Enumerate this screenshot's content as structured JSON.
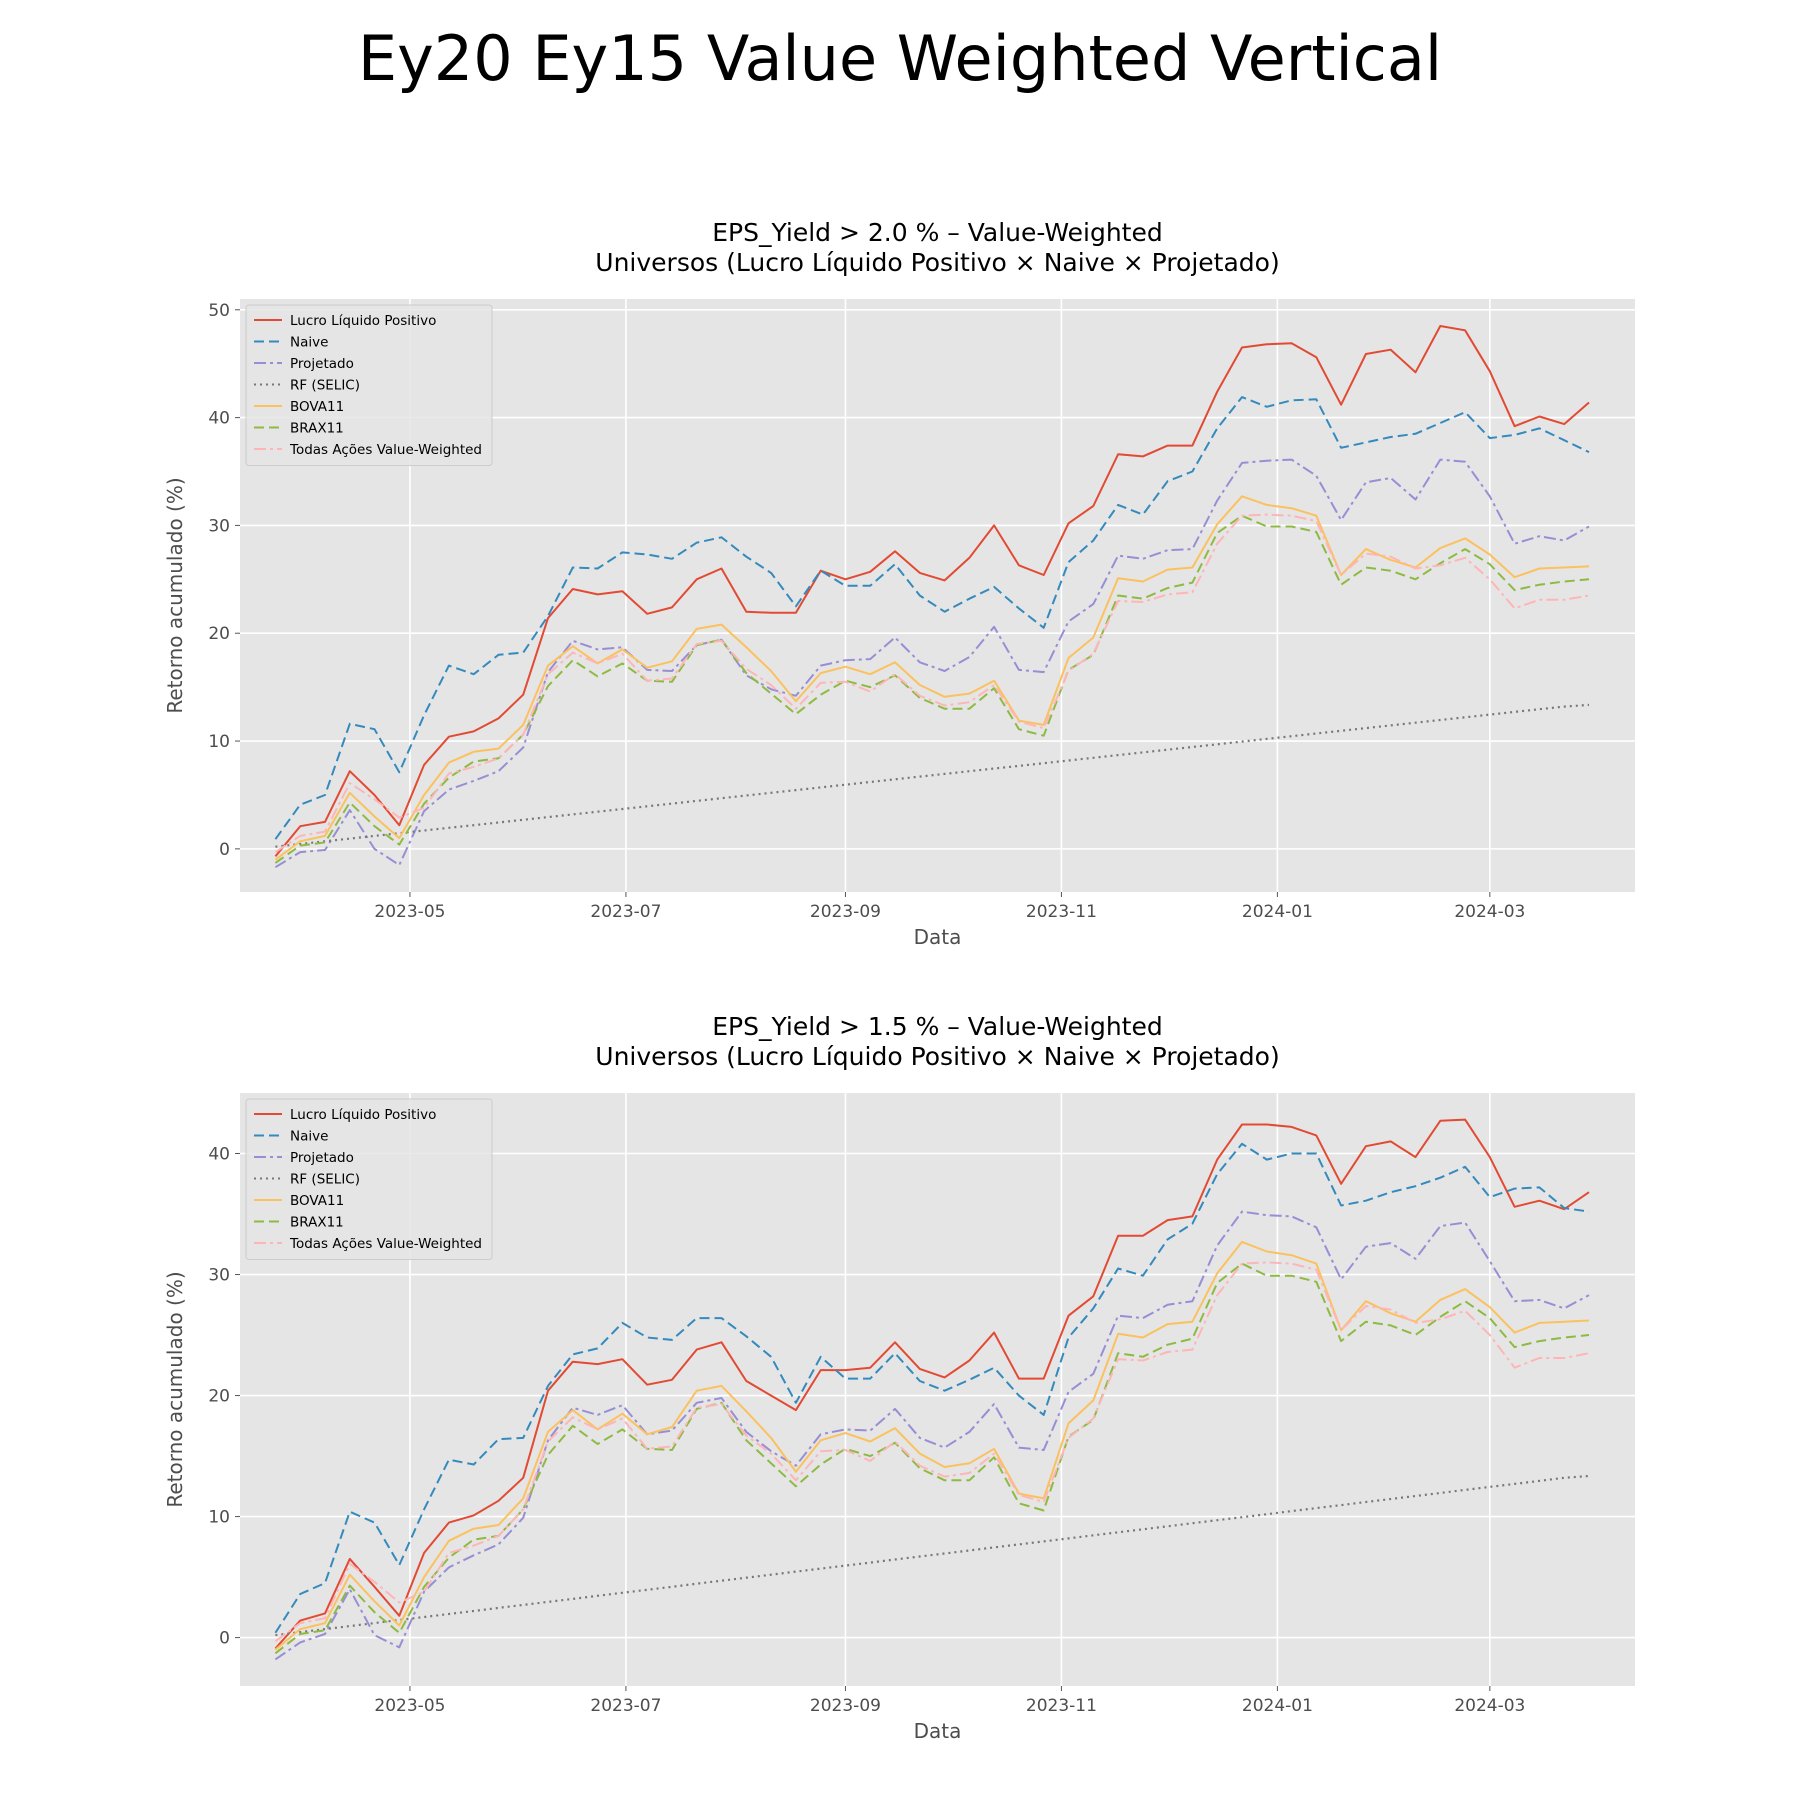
{
  "figure": {
    "title": "Ey20 Ey15 Value Weighted Vertical"
  },
  "colors": {
    "Lucro Líquido Positivo": "#E24A33",
    "Naive": "#348ABD",
    "Projetado": "#988ED5",
    "RF (SELIC)": "#777777",
    "BOVA11": "#FBC15E",
    "BRAX11": "#8EBA42",
    "Todas Ações Value-Weighted": "#FFB5B8"
  },
  "chart_data": [
    {
      "type": "line",
      "title": "EPS_Yield > 2.0 % – Value-Weighted",
      "subtitle": "Universos (Lucro Líquido Positivo × Naive × Projetado)",
      "xlabel": "Data",
      "ylabel": "Retorno acumulado (%)",
      "x_ticks": [
        "2023-05",
        "2023-07",
        "2023-09",
        "2023-11",
        "2024-01",
        "2024-03"
      ],
      "y_ticks": [
        0,
        10,
        20,
        30,
        40,
        50
      ],
      "xlim": [
        "2023-03-14",
        "2024-04-11"
      ],
      "ylim": [
        -4,
        51
      ],
      "grid": true,
      "legend_position": "upper-left",
      "x": [
        "2023-03-24",
        "2023-03-31",
        "2023-04-07",
        "2023-04-14",
        "2023-04-21",
        "2023-04-28",
        "2023-05-05",
        "2023-05-12",
        "2023-05-19",
        "2023-05-26",
        "2023-06-02",
        "2023-06-09",
        "2023-06-16",
        "2023-06-23",
        "2023-06-30",
        "2023-07-07",
        "2023-07-14",
        "2023-07-21",
        "2023-07-28",
        "2023-08-04",
        "2023-08-11",
        "2023-08-18",
        "2023-08-25",
        "2023-09-01",
        "2023-09-08",
        "2023-09-15",
        "2023-09-22",
        "2023-09-29",
        "2023-10-06",
        "2023-10-13",
        "2023-10-20",
        "2023-10-27",
        "2023-11-03",
        "2023-11-10",
        "2023-11-17",
        "2023-11-24",
        "2023-12-01",
        "2023-12-08",
        "2023-12-15",
        "2023-12-22",
        "2023-12-29",
        "2024-01-05",
        "2024-01-12",
        "2024-01-19",
        "2024-01-26",
        "2024-02-02",
        "2024-02-09",
        "2024-02-16",
        "2024-02-23",
        "2024-03-01",
        "2024-03-08",
        "2024-03-15",
        "2024-03-22",
        "2024-03-29"
      ],
      "series": [
        {
          "name": "Lucro Líquido Positivo",
          "style": "solid",
          "values": [
            -0.7,
            2.1,
            2.5,
            7.2,
            5.0,
            2.2,
            7.8,
            10.4,
            10.9,
            12.1,
            14.3,
            21.4,
            24.1,
            23.6,
            23.9,
            21.8,
            22.4,
            25.0,
            26.0,
            22.0,
            21.9,
            21.9,
            25.8,
            25.0,
            25.7,
            27.6,
            25.6,
            24.9,
            27.0,
            30.0,
            26.3,
            25.4,
            30.2,
            31.8,
            36.6,
            36.4,
            37.4,
            37.4,
            42.4,
            46.5,
            46.8,
            46.9,
            45.6,
            41.2,
            45.9,
            46.3,
            44.2,
            48.5,
            48.1,
            44.3,
            39.2,
            40.1,
            39.4,
            41.4
          ]
        },
        {
          "name": "Naive",
          "style": "dashed",
          "values": [
            0.9,
            4.1,
            5.0,
            11.6,
            11.1,
            7.1,
            12.4,
            17.0,
            16.2,
            18.0,
            18.2,
            21.6,
            26.1,
            26.0,
            27.5,
            27.3,
            26.9,
            28.4,
            28.9,
            27.1,
            25.6,
            22.5,
            25.8,
            24.4,
            24.4,
            26.4,
            23.5,
            22.0,
            23.2,
            24.3,
            22.3,
            20.5,
            26.6,
            28.6,
            31.9,
            31.0,
            34.1,
            35.0,
            39.0,
            41.9,
            41.0,
            41.6,
            41.7,
            37.2,
            37.7,
            38.2,
            38.5,
            39.5,
            40.5,
            38.1,
            38.4,
            39.0,
            37.9,
            36.8
          ]
        },
        {
          "name": "Projetado",
          "style": "dashdot",
          "values": [
            -1.7,
            -0.3,
            -0.1,
            3.6,
            0.0,
            -1.5,
            3.5,
            5.5,
            6.3,
            7.2,
            9.4,
            16.4,
            19.3,
            18.5,
            18.7,
            16.6,
            16.5,
            18.9,
            19.4,
            16.1,
            14.8,
            14.2,
            17.0,
            17.5,
            17.6,
            19.6,
            17.3,
            16.5,
            17.8,
            20.6,
            16.6,
            16.4,
            21.1,
            22.7,
            27.2,
            26.9,
            27.7,
            27.8,
            32.3,
            35.8,
            36.0,
            36.1,
            34.6,
            30.5,
            34.0,
            34.4,
            32.4,
            36.1,
            35.9,
            32.7,
            28.3,
            29.0,
            28.6,
            29.9
          ]
        },
        {
          "name": "RF (SELIC)",
          "style": "dotted",
          "values": [
            0.2,
            0.45,
            0.7,
            0.95,
            1.2,
            1.45,
            1.7,
            1.95,
            2.2,
            2.45,
            2.7,
            2.95,
            3.2,
            3.45,
            3.7,
            3.95,
            4.2,
            4.45,
            4.7,
            4.95,
            5.2,
            5.45,
            5.7,
            5.95,
            6.2,
            6.45,
            6.7,
            6.95,
            7.2,
            7.45,
            7.7,
            7.95,
            8.2,
            8.45,
            8.7,
            8.95,
            9.2,
            9.45,
            9.7,
            9.95,
            10.2,
            10.45,
            10.7,
            10.95,
            11.2,
            11.45,
            11.7,
            11.95,
            12.2,
            12.45,
            12.7,
            12.95,
            13.2,
            13.35
          ]
        },
        {
          "name": "BOVA11",
          "style": "solid",
          "values": [
            -1.0,
            0.7,
            1.2,
            5.2,
            3.0,
            1.0,
            5.0,
            8.0,
            9.0,
            9.3,
            11.5,
            17.0,
            18.8,
            17.2,
            18.5,
            16.8,
            17.4,
            20.4,
            20.8,
            18.7,
            16.5,
            13.7,
            16.3,
            16.9,
            16.2,
            17.3,
            15.2,
            14.1,
            14.4,
            15.6,
            11.9,
            11.5,
            17.7,
            19.6,
            25.1,
            24.8,
            25.9,
            26.1,
            30.1,
            32.7,
            31.9,
            31.6,
            30.9,
            25.4,
            27.8,
            26.8,
            26.1,
            27.9,
            28.8,
            27.3,
            25.2,
            26.0,
            26.1,
            26.2
          ]
        },
        {
          "name": "BRAX11",
          "style": "dashed",
          "values": [
            -1.3,
            0.3,
            0.6,
            4.3,
            2.1,
            0.4,
            4.2,
            6.6,
            8.1,
            8.4,
            10.6,
            15.1,
            17.5,
            16.0,
            17.2,
            15.6,
            15.5,
            18.9,
            19.4,
            16.3,
            14.4,
            12.5,
            14.3,
            15.6,
            15.0,
            16.1,
            14.0,
            13.0,
            13.0,
            14.9,
            11.1,
            10.5,
            16.6,
            18.0,
            23.5,
            23.2,
            24.2,
            24.7,
            29.3,
            30.9,
            29.9,
            29.9,
            29.4,
            24.5,
            26.1,
            25.8,
            25.0,
            26.5,
            27.8,
            26.4,
            24.0,
            24.5,
            24.8,
            25.0
          ]
        },
        {
          "name": "Todas Ações Value-Weighted",
          "style": "dashdot",
          "values": [
            -0.3,
            1.2,
            1.6,
            6.1,
            4.6,
            2.9,
            3.8,
            7.0,
            7.6,
            8.4,
            10.6,
            16.2,
            18.2,
            17.2,
            18.1,
            15.6,
            15.8,
            19.0,
            19.3,
            16.7,
            15.2,
            13.0,
            15.4,
            15.5,
            14.6,
            16.2,
            14.2,
            13.3,
            13.6,
            15.2,
            11.8,
            11.2,
            16.5,
            18.1,
            23.0,
            22.9,
            23.6,
            23.8,
            28.3,
            30.9,
            31.0,
            30.9,
            30.4,
            25.4,
            27.4,
            27.1,
            26.0,
            26.3,
            27.0,
            25.0,
            22.3,
            23.1,
            23.1,
            23.5
          ]
        }
      ]
    },
    {
      "type": "line",
      "title": "EPS_Yield > 1.5 % – Value-Weighted",
      "subtitle": "Universos (Lucro Líquido Positivo × Naive × Projetado)",
      "xlabel": "Data",
      "ylabel": "Retorno acumulado (%)",
      "x_ticks": [
        "2023-05",
        "2023-07",
        "2023-09",
        "2023-11",
        "2024-01",
        "2024-03"
      ],
      "y_ticks": [
        0,
        10,
        20,
        30,
        40
      ],
      "xlim": [
        "2023-03-14",
        "2024-04-11"
      ],
      "ylim": [
        -4,
        45
      ],
      "grid": true,
      "legend_position": "upper-left",
      "x": [
        "2023-03-24",
        "2023-03-31",
        "2023-04-07",
        "2023-04-14",
        "2023-04-21",
        "2023-04-28",
        "2023-05-05",
        "2023-05-12",
        "2023-05-19",
        "2023-05-26",
        "2023-06-02",
        "2023-06-09",
        "2023-06-16",
        "2023-06-23",
        "2023-06-30",
        "2023-07-07",
        "2023-07-14",
        "2023-07-21",
        "2023-07-28",
        "2023-08-04",
        "2023-08-11",
        "2023-08-18",
        "2023-08-25",
        "2023-09-01",
        "2023-09-08",
        "2023-09-15",
        "2023-09-22",
        "2023-09-29",
        "2023-10-06",
        "2023-10-13",
        "2023-10-20",
        "2023-10-27",
        "2023-11-03",
        "2023-11-10",
        "2023-11-17",
        "2023-11-24",
        "2023-12-01",
        "2023-12-08",
        "2023-12-15",
        "2023-12-22",
        "2023-12-29",
        "2024-01-05",
        "2024-01-12",
        "2024-01-19",
        "2024-01-26",
        "2024-02-02",
        "2024-02-09",
        "2024-02-16",
        "2024-02-23",
        "2024-03-01",
        "2024-03-08",
        "2024-03-15",
        "2024-03-22",
        "2024-03-29"
      ],
      "series": [
        {
          "name": "Lucro Líquido Positivo",
          "style": "solid",
          "values": [
            -0.9,
            1.4,
            2.0,
            6.5,
            4.2,
            1.8,
            7.0,
            9.5,
            10.1,
            11.3,
            13.2,
            20.4,
            22.8,
            22.6,
            23.0,
            20.9,
            21.3,
            23.8,
            24.4,
            21.2,
            20.0,
            18.8,
            22.1,
            22.1,
            22.3,
            24.4,
            22.2,
            21.5,
            22.9,
            25.2,
            21.4,
            21.4,
            26.6,
            28.2,
            33.2,
            33.2,
            34.5,
            34.8,
            39.5,
            42.4,
            42.4,
            42.2,
            41.5,
            37.5,
            40.6,
            41.0,
            39.7,
            42.7,
            42.8,
            39.7,
            35.6,
            36.1,
            35.4,
            36.8
          ]
        },
        {
          "name": "Naive",
          "style": "dashed",
          "values": [
            0.4,
            3.6,
            4.5,
            10.4,
            9.5,
            6.0,
            10.6,
            14.7,
            14.3,
            16.4,
            16.5,
            20.8,
            23.4,
            23.9,
            26.0,
            24.8,
            24.6,
            26.4,
            26.4,
            24.9,
            23.2,
            19.4,
            23.2,
            21.4,
            21.4,
            23.5,
            21.2,
            20.4,
            21.3,
            22.3,
            20.0,
            18.4,
            24.8,
            27.2,
            30.5,
            29.9,
            32.9,
            34.2,
            38.3,
            40.8,
            39.5,
            40.0,
            40.0,
            35.7,
            36.1,
            36.8,
            37.3,
            38.0,
            38.9,
            36.4,
            37.1,
            37.2,
            35.5,
            35.2
          ]
        },
        {
          "name": "Projetado",
          "style": "dashdot",
          "values": [
            -1.8,
            -0.4,
            0.3,
            4.0,
            0.2,
            -0.8,
            3.8,
            5.8,
            6.8,
            7.7,
            9.9,
            16.3,
            19.0,
            18.4,
            19.2,
            16.8,
            17.1,
            19.4,
            19.8,
            17.0,
            15.4,
            14.2,
            16.8,
            17.2,
            17.1,
            18.9,
            16.5,
            15.7,
            17.0,
            19.3,
            15.7,
            15.5,
            20.3,
            21.8,
            26.6,
            26.4,
            27.5,
            27.8,
            32.4,
            35.2,
            34.9,
            34.8,
            33.9,
            29.6,
            32.3,
            32.6,
            31.3,
            34.0,
            34.3,
            31.1,
            27.8,
            27.9,
            27.2,
            28.3
          ]
        },
        {
          "name": "RF (SELIC)",
          "style": "dotted",
          "values": [
            0.2,
            0.45,
            0.7,
            0.95,
            1.2,
            1.45,
            1.7,
            1.95,
            2.2,
            2.45,
            2.7,
            2.95,
            3.2,
            3.45,
            3.7,
            3.95,
            4.2,
            4.45,
            4.7,
            4.95,
            5.2,
            5.45,
            5.7,
            5.95,
            6.2,
            6.45,
            6.7,
            6.95,
            7.2,
            7.45,
            7.7,
            7.95,
            8.2,
            8.45,
            8.7,
            8.95,
            9.2,
            9.45,
            9.7,
            9.95,
            10.2,
            10.45,
            10.7,
            10.95,
            11.2,
            11.45,
            11.7,
            11.95,
            12.2,
            12.45,
            12.7,
            12.95,
            13.2,
            13.35
          ]
        },
        {
          "name": "BOVA11",
          "style": "solid",
          "values": [
            -1.0,
            0.7,
            1.2,
            5.2,
            3.0,
            1.0,
            5.0,
            8.0,
            9.0,
            9.3,
            11.5,
            17.0,
            18.8,
            17.2,
            18.5,
            16.8,
            17.4,
            20.4,
            20.8,
            18.7,
            16.5,
            13.7,
            16.3,
            16.9,
            16.2,
            17.3,
            15.2,
            14.1,
            14.4,
            15.6,
            11.9,
            11.5,
            17.7,
            19.6,
            25.1,
            24.8,
            25.9,
            26.1,
            30.1,
            32.7,
            31.9,
            31.6,
            30.9,
            25.4,
            27.8,
            26.8,
            26.1,
            27.9,
            28.8,
            27.3,
            25.2,
            26.0,
            26.1,
            26.2
          ]
        },
        {
          "name": "BRAX11",
          "style": "dashed",
          "values": [
            -1.3,
            0.3,
            0.6,
            4.3,
            2.1,
            0.4,
            4.2,
            6.6,
            8.1,
            8.4,
            10.6,
            15.1,
            17.5,
            16.0,
            17.2,
            15.6,
            15.5,
            18.9,
            19.4,
            16.3,
            14.4,
            12.5,
            14.3,
            15.6,
            15.0,
            16.1,
            14.0,
            13.0,
            13.0,
            14.9,
            11.1,
            10.5,
            16.6,
            18.0,
            23.5,
            23.2,
            24.2,
            24.7,
            29.3,
            30.9,
            29.9,
            29.9,
            29.4,
            24.5,
            26.1,
            25.8,
            25.0,
            26.5,
            27.8,
            26.4,
            24.0,
            24.5,
            24.8,
            25.0
          ]
        },
        {
          "name": "Todas Ações Value-Weighted",
          "style": "dashdot",
          "values": [
            -0.3,
            1.2,
            1.6,
            6.1,
            4.6,
            2.9,
            3.8,
            7.0,
            7.6,
            8.4,
            10.6,
            16.2,
            18.2,
            17.2,
            18.1,
            15.6,
            15.8,
            19.0,
            19.3,
            16.7,
            15.2,
            13.0,
            15.4,
            15.5,
            14.6,
            16.2,
            14.2,
            13.3,
            13.6,
            15.2,
            11.8,
            11.2,
            16.5,
            18.1,
            23.0,
            22.9,
            23.6,
            23.8,
            28.3,
            30.9,
            31.0,
            30.9,
            30.4,
            25.4,
            27.4,
            27.1,
            26.0,
            26.3,
            27.0,
            25.0,
            22.3,
            23.1,
            23.1,
            23.5
          ]
        }
      ]
    }
  ]
}
